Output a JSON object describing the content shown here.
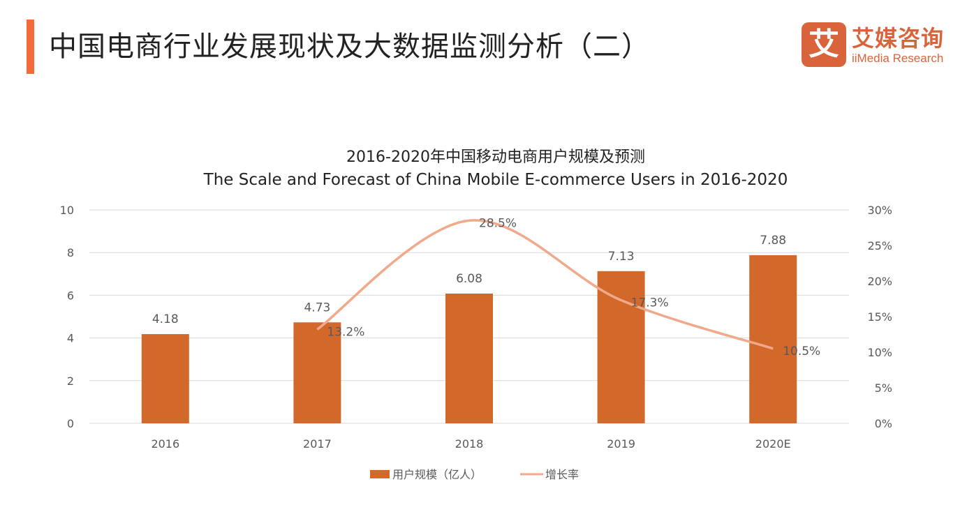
{
  "header": {
    "title": "中国电商行业发展现状及大数据监测分析（二）"
  },
  "logo": {
    "mark": "艾",
    "name_cn": "艾媒咨询",
    "name_en": "iiMedia Research"
  },
  "colors": {
    "accent": "#f26b3a",
    "bar": "#d2692b",
    "line": "#f0a98a",
    "logo": "#d9643c"
  },
  "chart_data": {
    "type": "bar+line",
    "title": "2016-2020年中国移动电商用户规模及预测",
    "subtitle": "The Scale and Forecast of China Mobile E-commerce  Users in 2016-2020",
    "categories": [
      "2016",
      "2017",
      "2018",
      "2019",
      "2020E"
    ],
    "series": [
      {
        "name": "用户规模（亿人）",
        "type": "bar",
        "axis": "left",
        "values": [
          4.18,
          4.73,
          6.08,
          7.13,
          7.88
        ],
        "labels": [
          "4.18",
          "4.73",
          "6.08",
          "7.13",
          "7.88"
        ]
      },
      {
        "name": "增长率",
        "type": "line",
        "axis": "right",
        "values": [
          null,
          13.2,
          28.5,
          17.3,
          10.5
        ],
        "labels": [
          "",
          "13.2%",
          "28.5%",
          "17.3%",
          "10.5%"
        ]
      }
    ],
    "y_left": {
      "range": [
        0,
        10
      ],
      "ticks": [
        "0",
        "2",
        "4",
        "6",
        "8",
        "10"
      ]
    },
    "y_right": {
      "range": [
        0,
        30
      ],
      "ticks": [
        "0%",
        "5%",
        "10%",
        "15%",
        "20%",
        "25%",
        "30%"
      ]
    },
    "grid": true,
    "legend": "bottom"
  }
}
